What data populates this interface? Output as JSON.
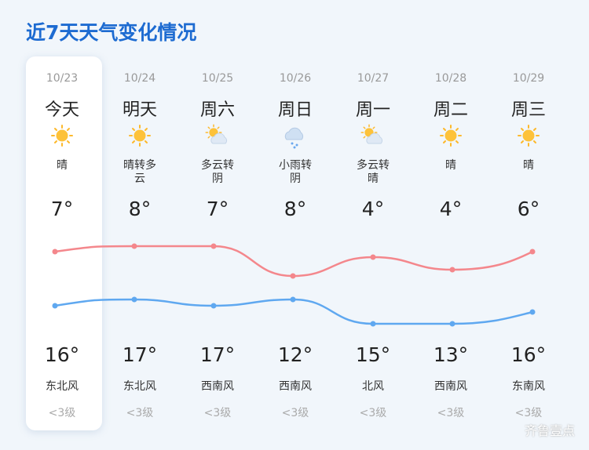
{
  "title": "近7天天气变化情况",
  "days": [
    {
      "date": "10/23",
      "day": "今天",
      "weather": "晴",
      "low": "7°",
      "high": "16°",
      "wind": "东北风",
      "level": "<3级"
    },
    {
      "date": "10/24",
      "day": "明天",
      "weather": "晴转多云",
      "low": "8°",
      "high": "17°",
      "wind": "东北风",
      "level": "<3级"
    },
    {
      "date": "10/25",
      "day": "周六",
      "weather": "多云转阴",
      "low": "7°",
      "high": "17°",
      "wind": "西南风",
      "level": "<3级"
    },
    {
      "date": "10/26",
      "day": "周日",
      "weather": "小雨转阴",
      "low": "8°",
      "high": "12°",
      "wind": "西南风",
      "level": "<3级"
    },
    {
      "date": "10/27",
      "day": "周一",
      "weather": "多云转晴",
      "low": "4°",
      "high": "15°",
      "wind": "北风",
      "level": "<3级"
    },
    {
      "date": "10/28",
      "day": "周二",
      "weather": "晴",
      "low": "4°",
      "high": "13°",
      "wind": "西南风",
      "level": "<3级"
    },
    {
      "date": "10/29",
      "day": "周三",
      "weather": "晴",
      "low": "6°",
      "high": "16°",
      "wind": "东南风",
      "level": "<3级"
    }
  ],
  "watermark": "齐鲁壹点"
}
